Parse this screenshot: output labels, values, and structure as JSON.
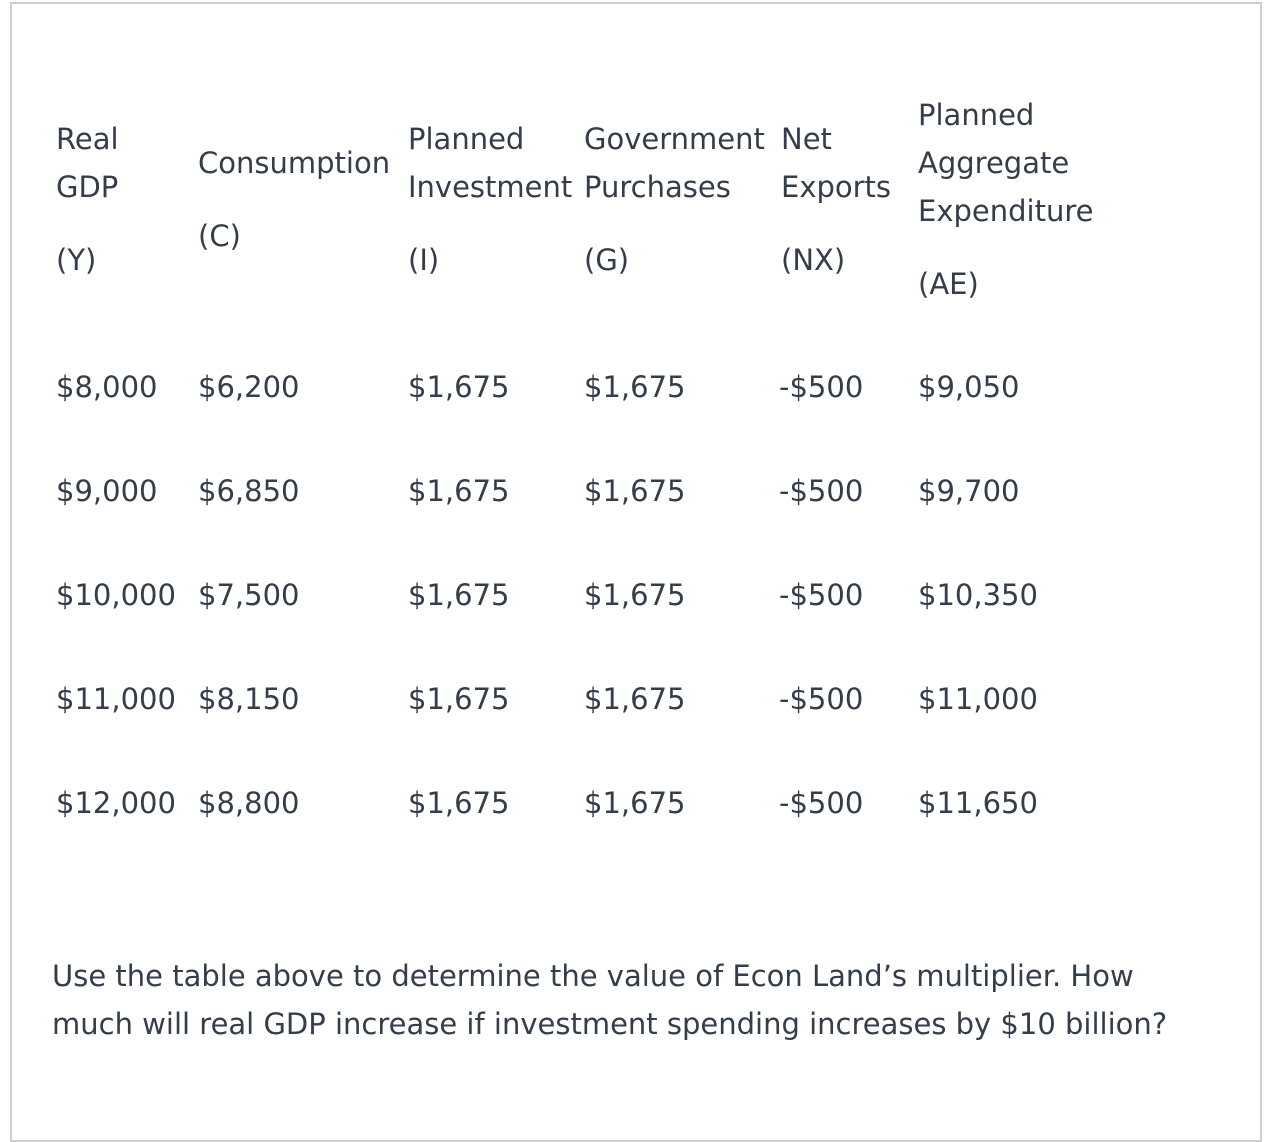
{
  "table": {
    "headers": [
      {
        "lines": [
          "Real",
          "GDP",
          "",
          "(Y)"
        ]
      },
      {
        "lines": [
          "Consumption",
          "",
          "(C)"
        ]
      },
      {
        "lines": [
          "Planned",
          "Investment",
          "",
          "(I)"
        ]
      },
      {
        "lines": [
          "Government",
          "Purchases",
          "",
          "(G)"
        ]
      },
      {
        "lines": [
          "Net",
          "Exports",
          "",
          "(NX)"
        ]
      },
      {
        "lines": [
          "Planned",
          "Aggregate",
          "Expenditure",
          "",
          "(AE)"
        ]
      }
    ],
    "rows": [
      [
        "$8,000",
        "$6,200",
        "$1,675",
        "$1,675",
        "-$500",
        "$9,050"
      ],
      [
        "$9,000",
        "$6,850",
        "$1,675",
        "$1,675",
        "-$500",
        "$9,700"
      ],
      [
        "$10,000",
        "$7,500",
        "$1,675",
        "$1,675",
        "-$500",
        "$10,350"
      ],
      [
        "$11,000",
        "$8,150",
        "$1,675",
        "$1,675",
        "-$500",
        "$11,000"
      ],
      [
        "$12,000",
        "$8,800",
        "$1,675",
        "$1,675",
        "-$500",
        "$11,650"
      ]
    ]
  },
  "question": {
    "line1": "Use the table above to determine the value of Econ Land’s multiplier. How",
    "line2": "much will real GDP increase if investment spending increases by $10 billion?"
  },
  "colors": {
    "text": "#343d4a",
    "border": "#cfcfcf"
  }
}
